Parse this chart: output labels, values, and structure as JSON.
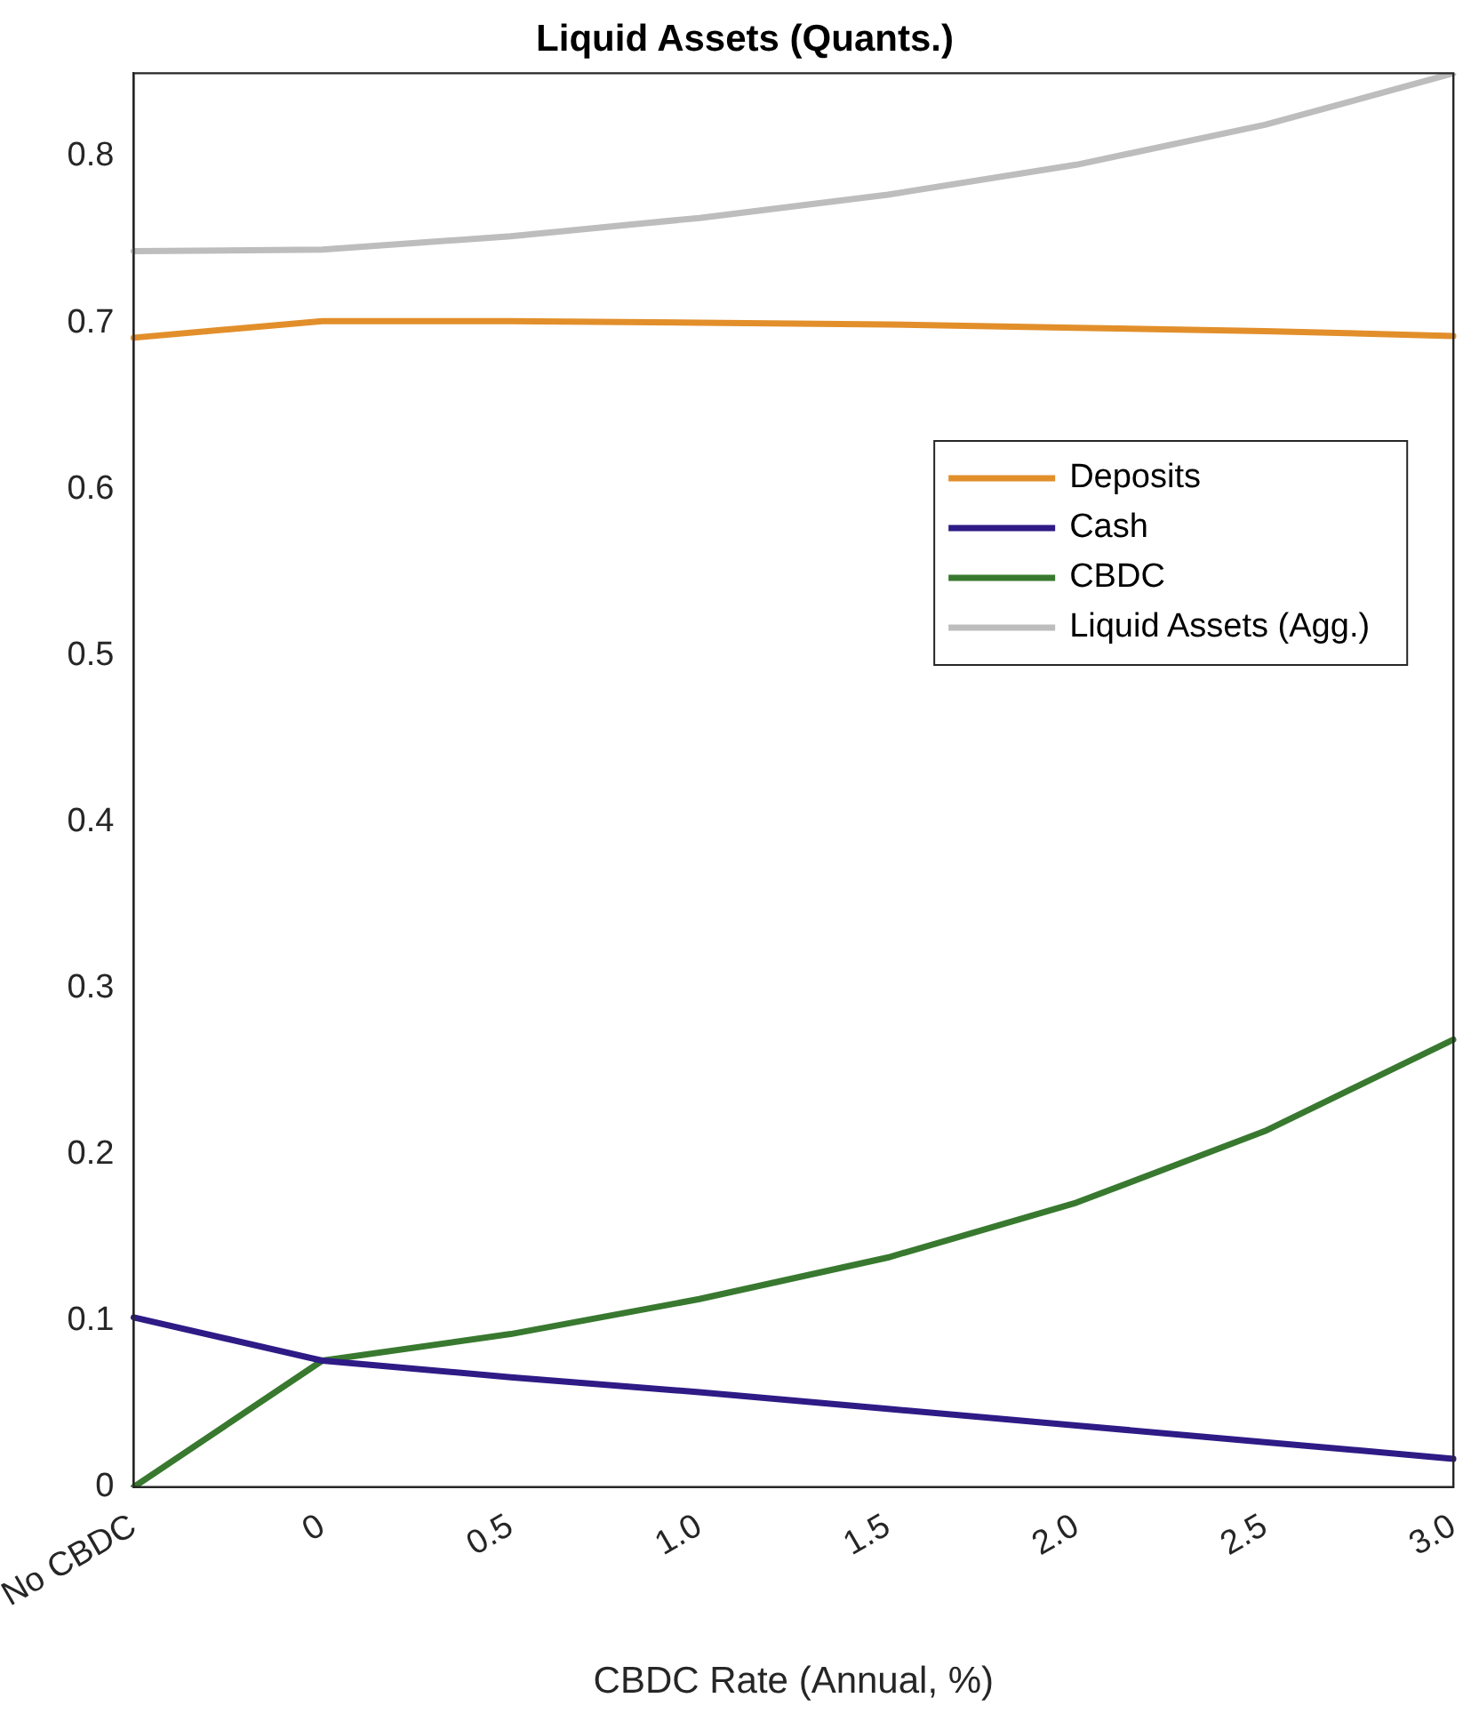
{
  "chart_data": {
    "type": "line",
    "title": "Liquid Assets (Quants.)",
    "xlabel": "CBDC Rate (Annual, %)",
    "categories": [
      "No CBDC",
      "0",
      "0.5",
      "1.0",
      "1.5",
      "2.0",
      "2.5",
      "3.0"
    ],
    "series": [
      {
        "name": "Deposits",
        "color": "#e28f2b",
        "values": [
          0.691,
          0.701,
          0.701,
          0.7,
          0.699,
          0.697,
          0.695,
          0.692
        ]
      },
      {
        "name": "Cash",
        "color": "#2e1b86",
        "values": [
          0.102,
          0.076,
          0.066,
          0.057,
          0.047,
          0.037,
          0.027,
          0.017
        ]
      },
      {
        "name": "CBDC",
        "color": "#38792f",
        "values": [
          0,
          0.076,
          0.092,
          0.113,
          0.138,
          0.171,
          0.214,
          0.269
        ]
      },
      {
        "name": "Liquid Assets (Agg.)",
        "color": "#bdbdbd",
        "values": [
          0.743,
          0.744,
          0.752,
          0.763,
          0.777,
          0.795,
          0.819,
          0.85
        ]
      }
    ],
    "ylim": [
      0,
      0.85
    ],
    "yticks": [
      0,
      0.1,
      0.2,
      0.3,
      0.4,
      0.5,
      0.6,
      0.7,
      0.8
    ],
    "grid": false,
    "legend": "right",
    "marker": "none",
    "line_style": "solid"
  }
}
